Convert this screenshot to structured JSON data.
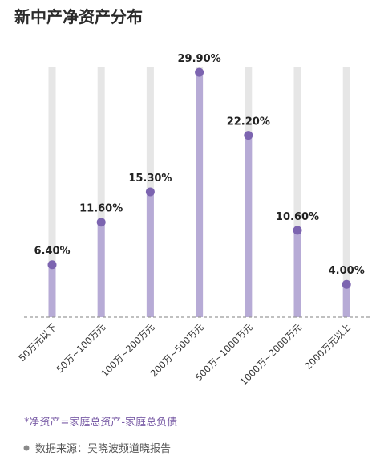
{
  "title": "新中产净资产分布",
  "footnote": "*净资产=家庭总资产-家庭总负债",
  "source": "数据来源：吴晓波频道晓报告",
  "colors": {
    "bar": "#b7abd6",
    "track": "#e6e6e6",
    "dot": "#7c64b0",
    "note": "#7b5ea7"
  },
  "chart_data": {
    "type": "bar",
    "title": "新中产净资产分布",
    "categories": [
      "50万元以下",
      "50万~100万元",
      "100万~200万元",
      "200万~500万元",
      "500万~1000万元",
      "1000万~2000万元",
      "2000万元以上"
    ],
    "values": [
      6.4,
      11.6,
      15.3,
      29.9,
      22.2,
      10.6,
      4.0
    ],
    "value_labels": [
      "6.40%",
      "11.60%",
      "15.30%",
      "29.90%",
      "22.20%",
      "10.60%",
      "4.00%"
    ],
    "ylim": [
      0,
      30.5
    ],
    "xlabel": "",
    "ylabel": "",
    "grid": false,
    "legend": "none"
  }
}
